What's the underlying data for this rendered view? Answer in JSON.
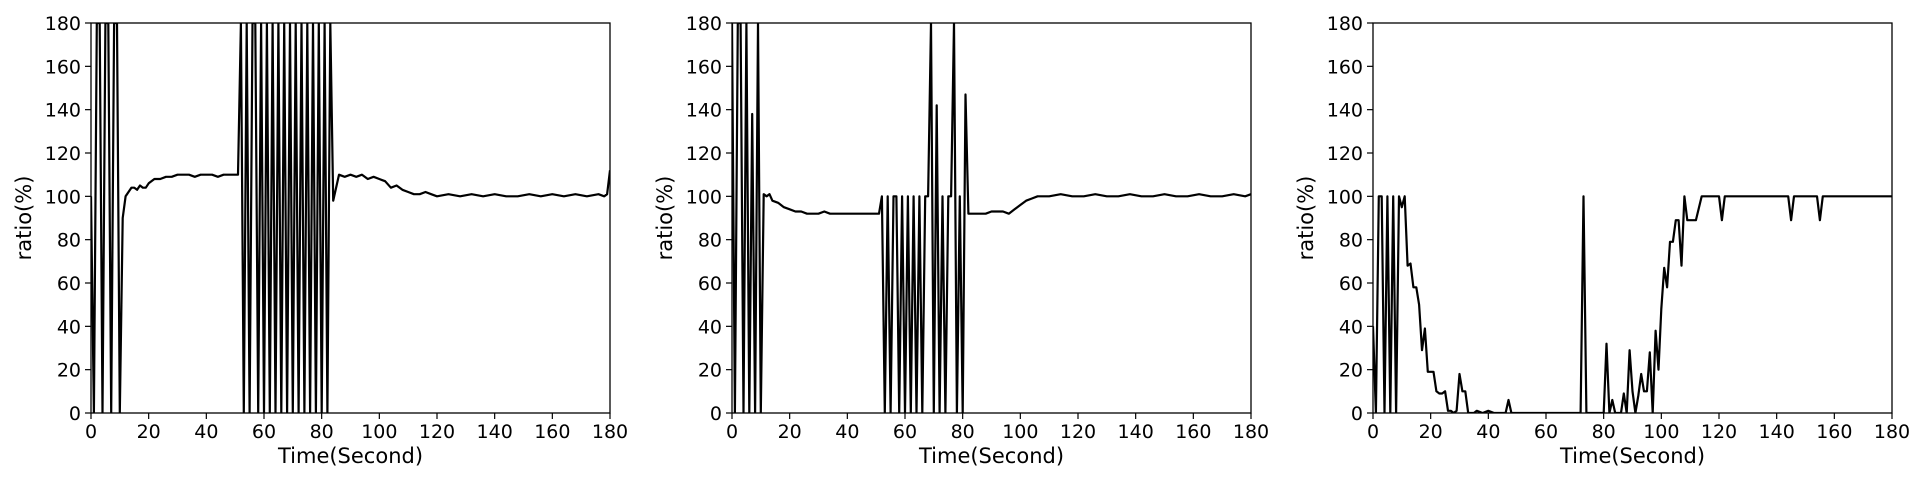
{
  "chart_data": [
    {
      "type": "line",
      "xlabel": "Time(Second)",
      "ylabel": "ratio(%)",
      "xlim": [
        0,
        180
      ],
      "ylim": [
        0,
        180
      ],
      "xticks": [
        0,
        20,
        40,
        60,
        80,
        100,
        120,
        140,
        160,
        180
      ],
      "yticks": [
        0,
        20,
        40,
        60,
        80,
        100,
        120,
        140,
        160,
        180
      ],
      "color": "#000000",
      "x": [
        0,
        1,
        2,
        3,
        4,
        5,
        6,
        7,
        8,
        9,
        10,
        11,
        12,
        13,
        14,
        15,
        16,
        17,
        18,
        19,
        20,
        22,
        24,
        26,
        28,
        30,
        32,
        34,
        36,
        38,
        40,
        42,
        44,
        46,
        48,
        50,
        51,
        52,
        53,
        54,
        55,
        56,
        57,
        58,
        59,
        60,
        61,
        62,
        63,
        64,
        65,
        66,
        67,
        68,
        69,
        70,
        71,
        72,
        73,
        74,
        75,
        76,
        77,
        78,
        79,
        80,
        81,
        82,
        83,
        84,
        86,
        88,
        90,
        92,
        94,
        96,
        98,
        100,
        102,
        104,
        106,
        108,
        110,
        112,
        114,
        116,
        118,
        120,
        124,
        128,
        132,
        136,
        140,
        144,
        148,
        152,
        156,
        160,
        164,
        168,
        172,
        176,
        178,
        179,
        180
      ],
      "y": [
        100,
        0,
        180,
        180,
        0,
        180,
        180,
        0,
        180,
        180,
        0,
        90,
        100,
        102,
        104,
        104,
        103,
        105,
        104,
        104,
        106,
        108,
        108,
        109,
        109,
        110,
        110,
        110,
        109,
        110,
        110,
        110,
        109,
        110,
        110,
        110,
        110,
        180,
        0,
        180,
        0,
        180,
        180,
        0,
        180,
        0,
        180,
        0,
        180,
        0,
        180,
        0,
        180,
        0,
        180,
        0,
        180,
        0,
        180,
        0,
        180,
        0,
        180,
        0,
        180,
        0,
        180,
        0,
        180,
        98,
        110,
        109,
        110,
        109,
        110,
        108,
        109,
        108,
        107,
        104,
        105,
        103,
        102,
        101,
        101,
        102,
        101,
        100,
        101,
        100,
        101,
        100,
        101,
        100,
        100,
        101,
        100,
        101,
        100,
        101,
        100,
        101,
        100,
        101,
        112
      ]
    },
    {
      "type": "line",
      "xlabel": "Time(Second)",
      "ylabel": "ratio(%)",
      "xlim": [
        0,
        180
      ],
      "ylim": [
        0,
        180
      ],
      "xticks": [
        0,
        20,
        40,
        60,
        80,
        100,
        120,
        140,
        160,
        180
      ],
      "yticks": [
        0,
        20,
        40,
        60,
        80,
        100,
        120,
        140,
        160,
        180
      ],
      "color": "#000000",
      "x": [
        0,
        1,
        2,
        3,
        4,
        5,
        6,
        7,
        8,
        9,
        10,
        11,
        12,
        13,
        14,
        16,
        18,
        20,
        22,
        24,
        26,
        28,
        30,
        32,
        34,
        36,
        38,
        40,
        42,
        44,
        46,
        48,
        50,
        51,
        52,
        53,
        54,
        55,
        56,
        57,
        58,
        59,
        60,
        61,
        62,
        63,
        64,
        65,
        66,
        67,
        68,
        69,
        70,
        71,
        72,
        73,
        74,
        75,
        76,
        77,
        78,
        79,
        80,
        81,
        82,
        84,
        86,
        88,
        90,
        92,
        94,
        96,
        98,
        100,
        102,
        104,
        106,
        108,
        110,
        114,
        118,
        122,
        126,
        130,
        134,
        138,
        142,
        146,
        150,
        154,
        158,
        162,
        166,
        170,
        174,
        178,
        180
      ],
      "y": [
        180,
        0,
        180,
        180,
        0,
        180,
        0,
        138,
        0,
        180,
        0,
        101,
        100,
        101,
        98,
        97,
        95,
        94,
        93,
        93,
        92,
        92,
        92,
        93,
        92,
        92,
        92,
        92,
        92,
        92,
        92,
        92,
        92,
        92,
        100,
        0,
        100,
        0,
        100,
        100,
        0,
        100,
        0,
        100,
        0,
        100,
        0,
        100,
        0,
        100,
        100,
        180,
        0,
        142,
        0,
        100,
        0,
        100,
        100,
        180,
        0,
        100,
        0,
        147,
        92,
        92,
        92,
        92,
        93,
        93,
        93,
        92,
        94,
        96,
        98,
        99,
        100,
        100,
        100,
        101,
        100,
        100,
        101,
        100,
        100,
        101,
        100,
        100,
        101,
        100,
        100,
        101,
        100,
        100,
        101,
        100,
        101
      ]
    },
    {
      "type": "line",
      "xlabel": "Time(Second)",
      "ylabel": "ratio(%)",
      "xlim": [
        0,
        180
      ],
      "ylim": [
        0,
        180
      ],
      "xticks": [
        0,
        20,
        40,
        60,
        80,
        100,
        120,
        140,
        160,
        180
      ],
      "yticks": [
        0,
        20,
        40,
        60,
        80,
        100,
        120,
        140,
        160,
        180
      ],
      "color": "#000000",
      "x": [
        0,
        1,
        2,
        3,
        4,
        5,
        6,
        7,
        8,
        9,
        10,
        11,
        12,
        13,
        14,
        15,
        16,
        17,
        18,
        19,
        20,
        21,
        22,
        23,
        24,
        25,
        26,
        27,
        28,
        29,
        30,
        31,
        32,
        33,
        34,
        35,
        36,
        38,
        40,
        42,
        44,
        46,
        47,
        48,
        49,
        50,
        52,
        56,
        60,
        64,
        68,
        72,
        73,
        74,
        76,
        78,
        80,
        81,
        82,
        83,
        84,
        85,
        86,
        87,
        88,
        89,
        90,
        91,
        92,
        93,
        94,
        95,
        96,
        97,
        98,
        99,
        100,
        101,
        102,
        103,
        104,
        105,
        106,
        107,
        108,
        109,
        110,
        111,
        112,
        114,
        116,
        118,
        120,
        121,
        122,
        124,
        126,
        128,
        130,
        134,
        138,
        142,
        144,
        145,
        146,
        150,
        152,
        154,
        155,
        156,
        160,
        170,
        180
      ],
      "y": [
        40,
        0,
        100,
        100,
        0,
        100,
        0,
        100,
        0,
        100,
        95,
        100,
        68,
        69,
        58,
        58,
        50,
        29,
        39,
        19,
        19,
        19,
        10,
        9,
        9,
        10,
        1,
        1,
        0,
        1,
        18,
        10,
        10,
        0,
        0,
        0,
        1,
        0,
        1,
        0,
        0,
        0,
        6,
        0,
        0,
        0,
        0,
        0,
        0,
        0,
        0,
        0,
        100,
        0,
        0,
        0,
        0,
        32,
        0,
        6,
        0,
        0,
        0,
        9,
        0,
        29,
        10,
        0,
        8,
        18,
        10,
        10,
        28,
        0,
        38,
        20,
        48,
        67,
        58,
        79,
        79,
        89,
        89,
        68,
        100,
        89,
        89,
        89,
        89,
        100,
        100,
        100,
        100,
        89,
        100,
        100,
        100,
        100,
        100,
        100,
        100,
        100,
        100,
        89,
        100,
        100,
        100,
        100,
        89,
        100,
        100,
        100,
        100
      ]
    }
  ]
}
